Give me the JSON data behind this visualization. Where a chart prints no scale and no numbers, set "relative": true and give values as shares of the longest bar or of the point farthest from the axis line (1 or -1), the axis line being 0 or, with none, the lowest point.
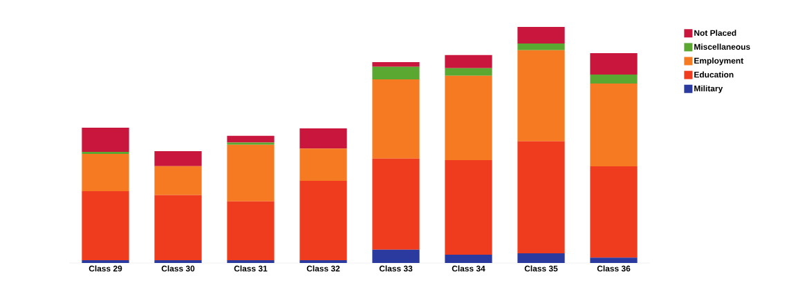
{
  "chart_data": {
    "type": "bar",
    "stacked": true,
    "relative": true,
    "legend": "top right",
    "categories": [
      "Class 29",
      "Class 30",
      "Class 31",
      "Class 32",
      "Class 33",
      "Class 34",
      "Class 35",
      "Class 36"
    ],
    "series": [
      {
        "name": "Military",
        "color": "#2b3a9e",
        "values": [
          0.012,
          0.012,
          0.012,
          0.012,
          0.056,
          0.035,
          0.041,
          0.023
        ]
      },
      {
        "name": "Education",
        "color": "#f03c1e",
        "values": [
          0.292,
          0.275,
          0.249,
          0.336,
          0.386,
          0.401,
          0.474,
          0.386
        ]
      },
      {
        "name": "Employment",
        "color": "#f57a22",
        "values": [
          0.158,
          0.123,
          0.24,
          0.137,
          0.336,
          0.357,
          0.386,
          0.351
        ]
      },
      {
        "name": "Miscellaneous",
        "color": "#5aa832",
        "values": [
          0.009,
          0,
          0.009,
          0,
          0.053,
          0.032,
          0.029,
          0.038
        ]
      },
      {
        "name": "Not Placed",
        "color": "#c8163c",
        "values": [
          0.102,
          0.064,
          0.029,
          0.085,
          0.02,
          0.056,
          0.07,
          0.091
        ]
      }
    ]
  }
}
